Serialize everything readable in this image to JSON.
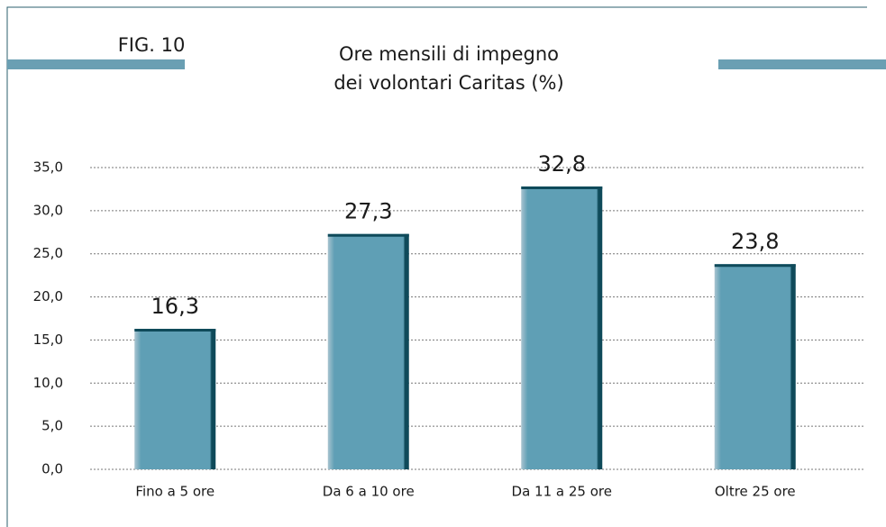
{
  "chart_data": {
    "type": "bar",
    "figure_label": "FIG. 10",
    "title": [
      "Ore mensili di impegno",
      "dei volontari Caritas (%)"
    ],
    "categories": [
      "Fino a 5 ore",
      "Da 6 a 10 ore",
      "Da 11 a 25 ore",
      "Oltre 25 ore"
    ],
    "values": [
      16.3,
      27.3,
      32.8,
      23.8
    ],
    "value_labels": [
      "16,3",
      "27,3",
      "32,8",
      "23,8"
    ],
    "color": "#5f9fb5",
    "ylim": [
      0,
      35
    ],
    "yticks": [
      {
        "value": 0,
        "label": "0,0"
      },
      {
        "value": 5,
        "label": "5,0"
      },
      {
        "value": 10,
        "label": "10,0"
      },
      {
        "value": 15,
        "label": "15,0"
      },
      {
        "value": 20,
        "label": "20,0"
      },
      {
        "value": 25,
        "label": "25,0"
      },
      {
        "value": 30,
        "label": "30,0"
      },
      {
        "value": 35,
        "label": "35,0"
      }
    ],
    "grid": true
  }
}
